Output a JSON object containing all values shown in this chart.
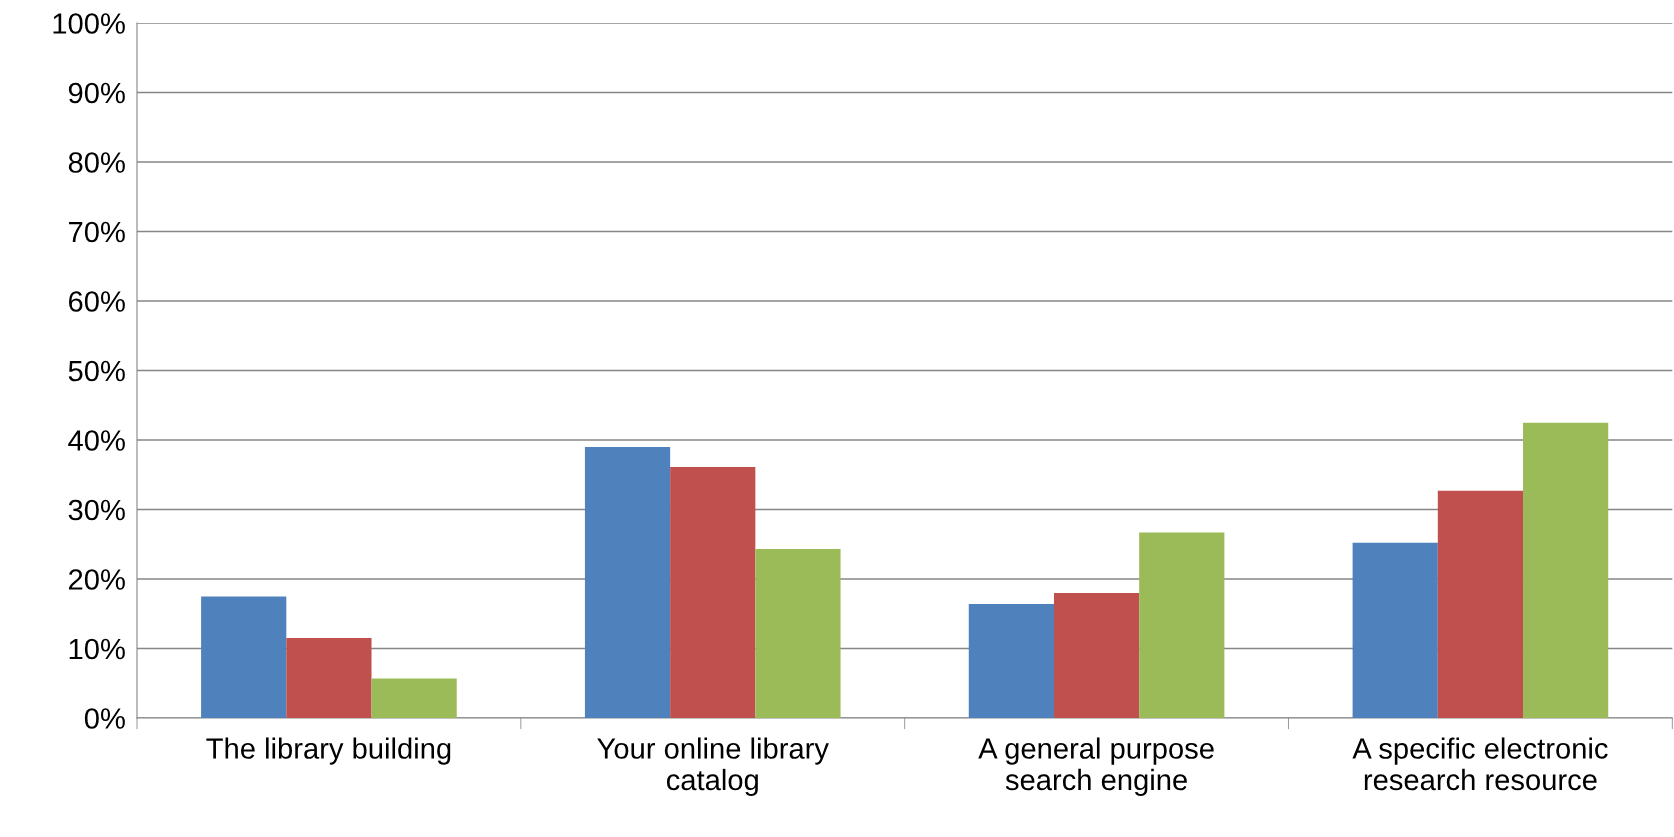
{
  "chart_data": {
    "type": "bar",
    "categories": [
      "The library building",
      "Your online library\ncatalog",
      "A general purpose\nsearch engine",
      "A specific electronic\nresearch resource"
    ],
    "series": [
      {
        "color": "#4f81bd",
        "values": [
          17.5,
          39.0,
          16.4,
          25.2
        ]
      },
      {
        "color": "#c0504d",
        "values": [
          11.5,
          36.1,
          18.0,
          32.7
        ]
      },
      {
        "color": "#9bbb59",
        "values": [
          5.7,
          24.3,
          26.7,
          42.5
        ]
      }
    ],
    "ylim": [
      0,
      100
    ],
    "yticks": [
      {
        "value": 0,
        "label": "0%"
      },
      {
        "value": 10,
        "label": "10%"
      },
      {
        "value": 20,
        "label": "20%"
      },
      {
        "value": 30,
        "label": "30%"
      },
      {
        "value": 40,
        "label": "40%"
      },
      {
        "value": 50,
        "label": "50%"
      },
      {
        "value": 60,
        "label": "60%"
      },
      {
        "value": 70,
        "label": "70%"
      },
      {
        "value": 80,
        "label": "80%"
      },
      {
        "value": 90,
        "label": "90%"
      },
      {
        "value": 100,
        "label": "100%"
      }
    ],
    "grid": "y",
    "legend": false
  }
}
